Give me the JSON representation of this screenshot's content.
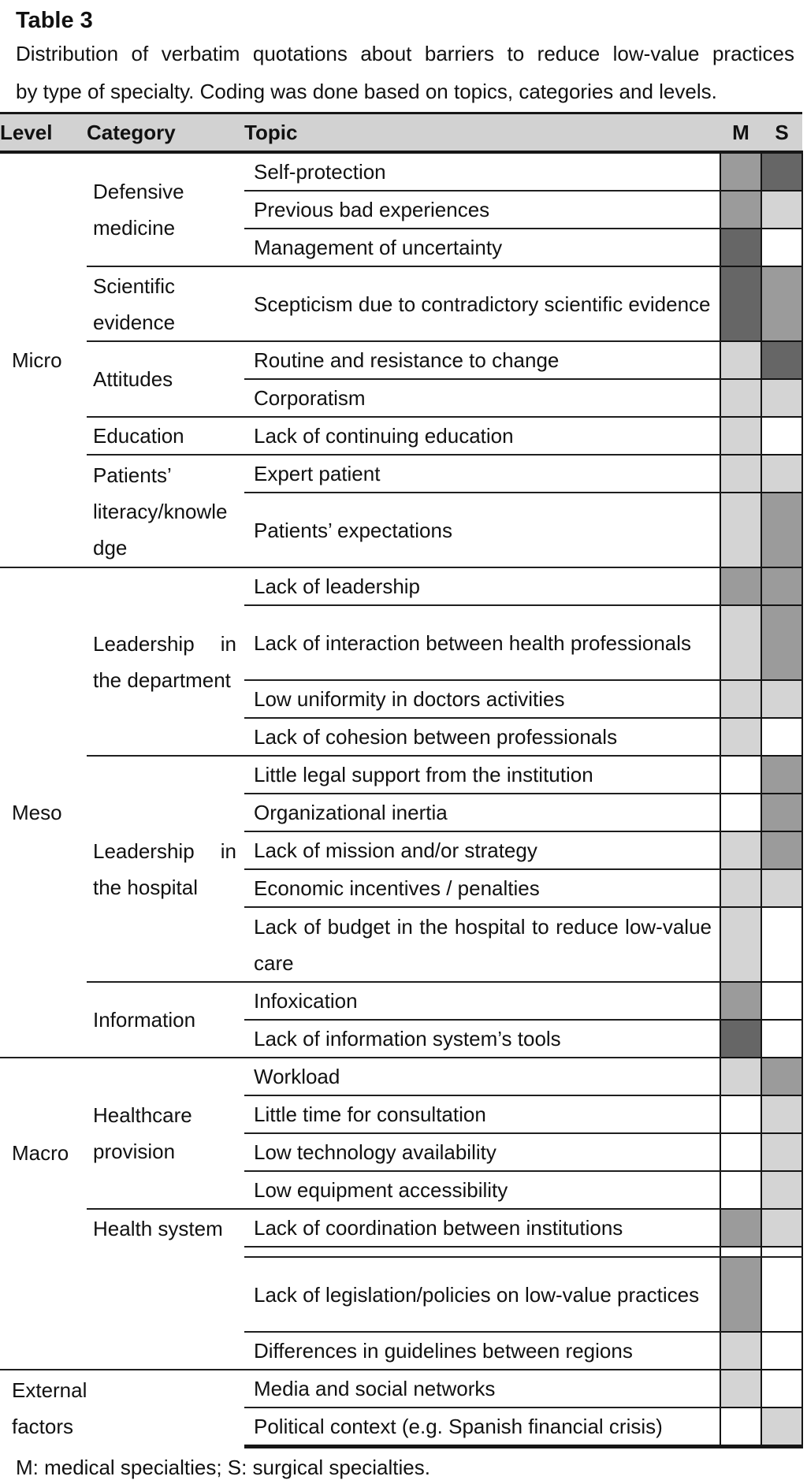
{
  "title": "Table 3",
  "caption_line1": "Distribution of verbatim quotations about barriers to reduce low-value practices",
  "caption_line2": "by type of specialty. Coding was done based on topics, categories and levels.",
  "footnote": "M: medical specialties; S: surgical specialties.",
  "columns": {
    "level": "Level",
    "category": "Category",
    "topic": "Topic",
    "m": "M",
    "s": "S"
  },
  "shade_colors": {
    "none": "#ffffff",
    "light": "#d4d4d4",
    "medium": "#9b9b9b",
    "dark": "#666666"
  },
  "levels": [
    {
      "label": "Micro",
      "categories": [
        {
          "label": "Defensive medicine",
          "topics": [
            {
              "text": "Self-protection",
              "m": "medium",
              "s": "dark"
            },
            {
              "text": "Previous bad experiences",
              "m": "medium",
              "s": "light"
            },
            {
              "text": "Management of uncertainty",
              "m": "dark",
              "s": "none"
            }
          ]
        },
        {
          "label": "Scientific evidence",
          "topics": [
            {
              "text": "Scepticism due to contradictory scientific evidence",
              "m": "dark",
              "s": "medium"
            }
          ]
        },
        {
          "label": "Attitudes",
          "topics": [
            {
              "text": "Routine and resistance to change",
              "m": "light",
              "s": "dark"
            },
            {
              "text": "Corporatism",
              "m": "light",
              "s": "light"
            }
          ]
        },
        {
          "label": "Education",
          "topics": [
            {
              "text": "Lack of continuing education",
              "m": "light",
              "s": "none"
            }
          ]
        },
        {
          "label": "Patients’ literacy/knowledge",
          "topics": [
            {
              "text": "Expert patient",
              "m": "light",
              "s": "light"
            },
            {
              "text": "Patients’ expectations",
              "m": "light",
              "s": "medium"
            }
          ]
        }
      ]
    },
    {
      "label": "Meso",
      "categories": [
        {
          "label": "Leadership in the department",
          "topics": [
            {
              "text": "Lack of leadership",
              "m": "medium",
              "s": "medium"
            },
            {
              "text": "Lack of interaction between health professionals",
              "m": "light",
              "s": "medium"
            },
            {
              "text": "Low uniformity in doctors activities",
              "m": "light",
              "s": "light"
            },
            {
              "text": "Lack of cohesion between professionals",
              "m": "light",
              "s": "none"
            }
          ]
        },
        {
          "label": "Leadership in the hospital",
          "topics": [
            {
              "text": "Little legal support from the institution",
              "m": "none",
              "s": "medium"
            },
            {
              "text": "Organizational inertia",
              "m": "none",
              "s": "medium"
            },
            {
              "text": "Lack of mission and/or strategy",
              "m": "light",
              "s": "medium"
            },
            {
              "text": "Economic incentives / penalties",
              "m": "light",
              "s": "light"
            },
            {
              "text": "Lack of budget in the hospital to reduce low-value care",
              "m": "light",
              "s": "none"
            }
          ]
        },
        {
          "label": "Information",
          "topics": [
            {
              "text": "Infoxication",
              "m": "medium",
              "s": "none"
            },
            {
              "text": "Lack of information system’s tools",
              "m": "dark",
              "s": "none"
            }
          ]
        }
      ]
    },
    {
      "label": "Macro",
      "categories": [
        {
          "label": "Healthcare provision",
          "topics": [
            {
              "text": "Workload",
              "m": "light",
              "s": "medium"
            },
            {
              "text": "Little time for consultation",
              "m": "none",
              "s": "light"
            },
            {
              "text": "Low technology availability",
              "m": "none",
              "s": "light"
            },
            {
              "text": "Low equipment accessibility",
              "m": "none",
              "s": "light"
            }
          ]
        },
        {
          "label": "Health system",
          "topics": [
            {
              "text": "Lack of coordination between institutions",
              "m": "medium",
              "s": "light"
            }
          ]
        }
      ]
    },
    {
      "label": "",
      "categories": [
        {
          "label": "",
          "topics": [
            {
              "text": "Lack of legislation/policies on low-value practices",
              "m": "medium",
              "s": "none"
            },
            {
              "text": "Differences in guidelines between regions",
              "m": "light",
              "s": "none"
            }
          ]
        }
      ]
    },
    {
      "label": "External factors",
      "categories": [
        {
          "label": "",
          "topics": [
            {
              "text": "Media and social networks",
              "m": "light",
              "s": "none"
            },
            {
              "text": "Political context (e.g. Spanish financial crisis)",
              "m": "none",
              "s": "light"
            }
          ]
        }
      ]
    }
  ]
}
